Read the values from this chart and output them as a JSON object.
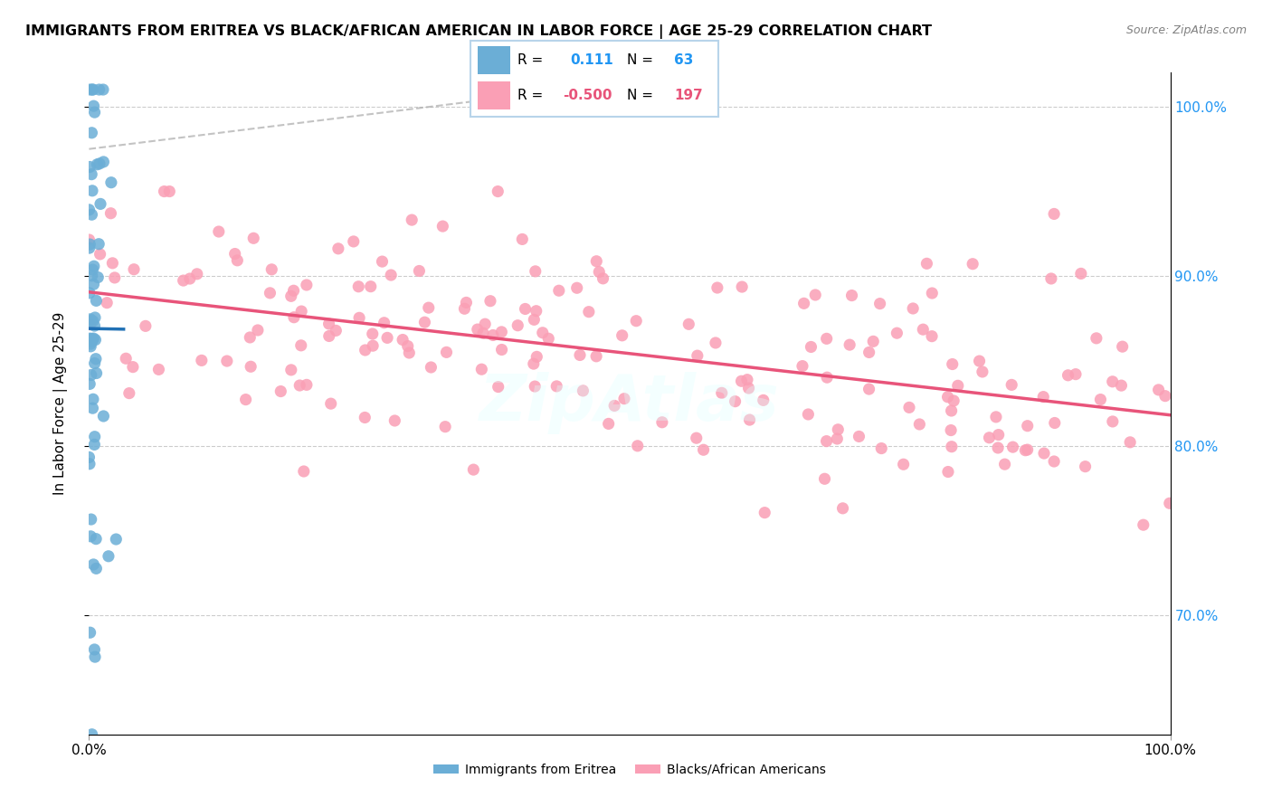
{
  "title": "IMMIGRANTS FROM ERITREA VS BLACK/AFRICAN AMERICAN IN LABOR FORCE | AGE 25-29 CORRELATION CHART",
  "source": "Source: ZipAtlas.com",
  "ylabel": "In Labor Force | Age 25-29",
  "xlim": [
    0.0,
    1.0
  ],
  "ylim": [
    0.63,
    1.02
  ],
  "yticks": [
    0.7,
    0.8,
    0.9,
    1.0
  ],
  "ytick_labels": [
    "70.0%",
    "80.0%",
    "90.0%",
    "100.0%"
  ],
  "xticks": [
    0.0,
    1.0
  ],
  "xtick_labels": [
    "0.0%",
    "100.0%"
  ],
  "blue_color": "#6baed6",
  "pink_color": "#fa9fb5",
  "blue_line_color": "#2171b5",
  "pink_line_color": "#e8547a",
  "watermark": "ZipAtlas",
  "R_blue": 0.111,
  "N_blue": 63,
  "R_pink": -0.5,
  "N_pink": 197
}
